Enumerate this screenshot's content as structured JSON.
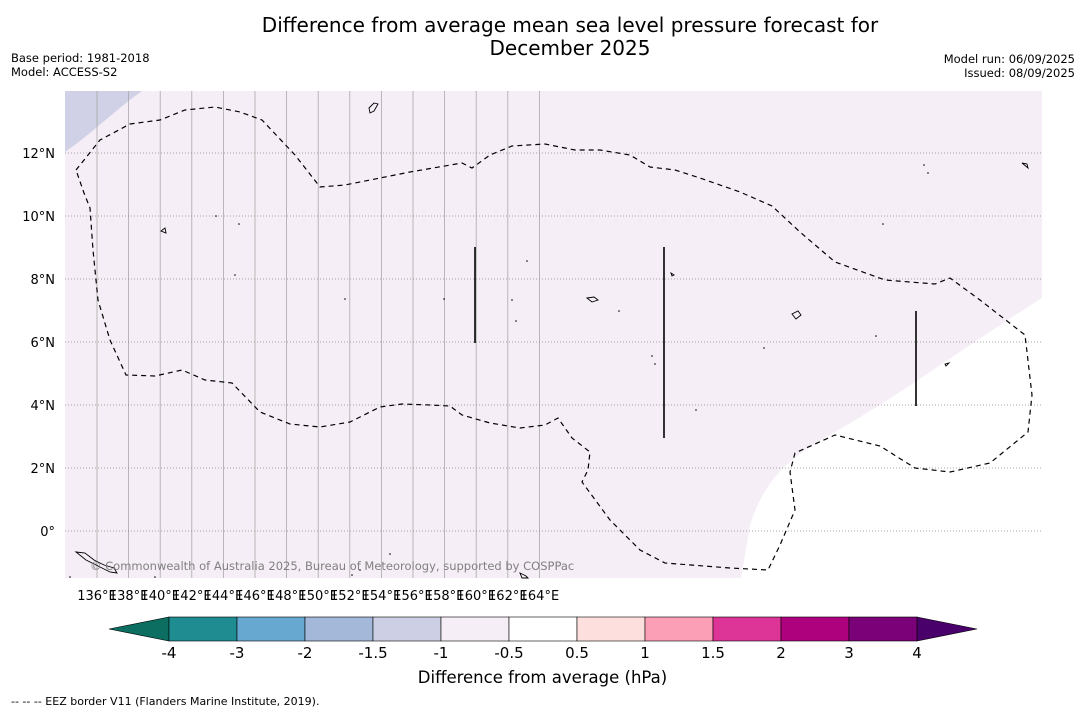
{
  "header": {
    "title_line1": "Difference from average mean sea level pressure forecast for",
    "title_line2": "December 2025",
    "base_period": "Base period: 1981-2018",
    "model": "Model: ACCESS-S2",
    "model_run": "Model run: 06/09/2025",
    "issued": "Issued: 08/09/2025"
  },
  "map": {
    "x_ticks": [
      "136°E",
      "138°E",
      "140°E",
      "142°E",
      "144°E",
      "146°E",
      "148°E",
      "150°E",
      "152°E",
      "154°E",
      "156°E",
      "158°E",
      "160°E",
      "162°E",
      "164°E"
    ],
    "y_ticks": [
      "12°N",
      "10°N",
      "8°N",
      "6°N",
      "4°N",
      "2°N",
      "0°"
    ],
    "copyright": "© Commonwealth of Australia 2025, Bureau of Meteorology, supported by COSPPac",
    "colors": {
      "background_class": "#f5eef6",
      "neutral_class": "#ffffff",
      "lower_class": "#d0d1e6"
    }
  },
  "colorbar": {
    "title": "Difference from average (hPa)",
    "labels": [
      "-4",
      "-3",
      "-2",
      "-1.5",
      "-1",
      "-0.5",
      "0.5",
      "1",
      "1.5",
      "2",
      "3",
      "4"
    ],
    "colors": [
      "#1e8c91",
      "#66a8d0",
      "#a4b8da",
      "#cdd0e5",
      "#f5eef6",
      "#ffffff",
      "#fde0dd",
      "#fa9fb5",
      "#dd3497",
      "#ae017e",
      "#7a0177"
    ],
    "under_color": "#0b6e60",
    "over_color": "#4a006a"
  },
  "footer": {
    "eez_note": "-- -- -- EEZ border V11 (Flanders Marine Institute, 2019)."
  }
}
